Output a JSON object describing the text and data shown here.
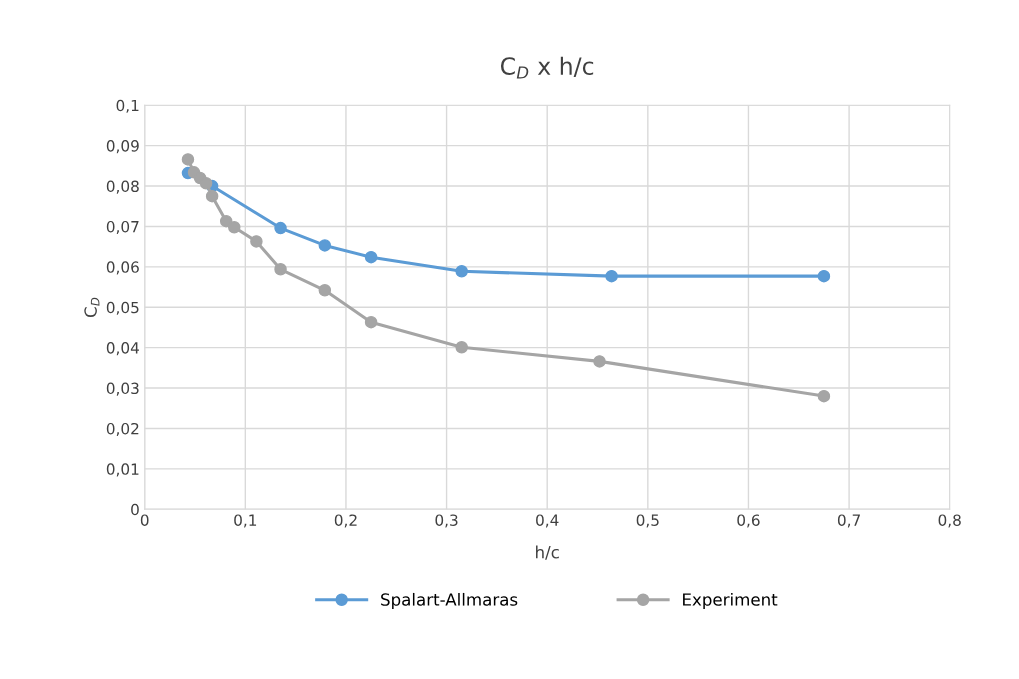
{
  "chart_data": {
    "type": "line",
    "title": "C$_{D}$ x h/c",
    "xlabel": "h/c",
    "ylabel": "C$_{D}$",
    "series": [
      {
        "name": "Spalart-Allmaras",
        "color": "#5b9bd5",
        "x": [
          0.043,
          0.067,
          0.135,
          0.179,
          0.225,
          0.315,
          0.464,
          0.675
        ],
        "values": [
          0.0832,
          0.08,
          0.0696,
          0.0653,
          0.0624,
          0.0589,
          0.0577,
          0.0577
        ]
      },
      {
        "name": "Experiment",
        "color": "#a5a5a5",
        "x": [
          0.043,
          0.049,
          0.055,
          0.061,
          0.067,
          0.081,
          0.089,
          0.111,
          0.135,
          0.179,
          0.225,
          0.315,
          0.452,
          0.675
        ],
        "values": [
          0.0866,
          0.0834,
          0.082,
          0.0807,
          0.0775,
          0.0713,
          0.0698,
          0.0663,
          0.0594,
          0.0542,
          0.0463,
          0.0401,
          0.0366,
          0.028
        ]
      }
    ],
    "xlim": [
      0,
      0.8
    ],
    "xticks": [
      {
        "value": 0,
        "label": "0"
      },
      {
        "value": 0.1,
        "label": "0,1"
      },
      {
        "value": 0.2,
        "label": "0,2"
      },
      {
        "value": 0.3,
        "label": "0,3"
      },
      {
        "value": 0.4,
        "label": "0,4"
      },
      {
        "value": 0.5,
        "label": "0,5"
      },
      {
        "value": 0.6,
        "label": "0,6"
      },
      {
        "value": 0.7,
        "label": "0,7"
      },
      {
        "value": 0.8,
        "label": "0,8"
      }
    ],
    "ylim": [
      0,
      0.1
    ],
    "yticks": [
      {
        "value": 0,
        "label": "0"
      },
      {
        "value": 0.01,
        "label": "0,01"
      },
      {
        "value": 0.02,
        "label": "0,02"
      },
      {
        "value": 0.03,
        "label": "0,03"
      },
      {
        "value": 0.04,
        "label": "0,04"
      },
      {
        "value": 0.05,
        "label": "0,05"
      },
      {
        "value": 0.06,
        "label": "0,06"
      },
      {
        "value": 0.07,
        "label": "0,07"
      },
      {
        "value": 0.08,
        "label": "0,08"
      },
      {
        "value": 0.09,
        "label": "0,09"
      },
      {
        "value": 0.1,
        "label": "0,1"
      }
    ],
    "grid": true,
    "legend": "bottom",
    "marker": "circle",
    "line_style": "solid"
  }
}
